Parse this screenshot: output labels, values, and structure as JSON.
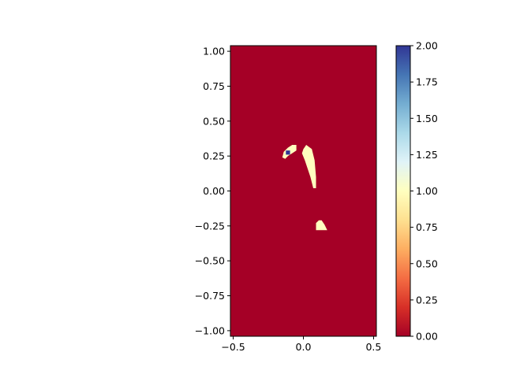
{
  "chart_data": [
    {
      "type": "heatmap",
      "title": "",
      "xlabel": "",
      "ylabel": "",
      "xlim": [
        -0.52,
        0.52
      ],
      "ylim": [
        -1.04,
        1.04
      ],
      "x_ticks": [
        -0.5,
        0.0,
        0.5
      ],
      "x_tick_labels": [
        "−0.5",
        "0.0",
        "0.5"
      ],
      "y_ticks": [
        1.0,
        0.75,
        0.5,
        0.25,
        0.0,
        -0.25,
        -0.5,
        -0.75,
        -1.0
      ],
      "y_tick_labels": [
        "1.00",
        "0.75",
        "0.50",
        "0.25",
        "0.00",
        "−0.25",
        "−0.50",
        "−0.75",
        "−1.00"
      ],
      "background_value": 0,
      "regions": [
        {
          "value": 1,
          "polygon": [
            [
              -0.15,
              0.24
            ],
            [
              -0.14,
              0.28
            ],
            [
              -0.11,
              0.31
            ],
            [
              -0.08,
              0.33
            ],
            [
              -0.05,
              0.33
            ],
            [
              -0.05,
              0.29
            ],
            [
              -0.08,
              0.27
            ],
            [
              -0.11,
              0.25
            ],
            [
              -0.13,
              0.23
            ]
          ]
        },
        {
          "value": 2,
          "polygon": [
            [
              -0.125,
              0.26
            ],
            [
              -0.125,
              0.29
            ],
            [
              -0.095,
              0.29
            ],
            [
              -0.095,
              0.26
            ]
          ]
        },
        {
          "value": 1,
          "polygon": [
            [
              0.0,
              0.3
            ],
            [
              0.02,
              0.33
            ],
            [
              0.06,
              0.3
            ],
            [
              0.08,
              0.22
            ],
            [
              0.09,
              0.1
            ],
            [
              0.09,
              0.02
            ],
            [
              0.07,
              0.02
            ],
            [
              0.05,
              0.1
            ],
            [
              0.01,
              0.22
            ],
            [
              -0.01,
              0.27
            ]
          ]
        },
        {
          "value": 1,
          "polygon": [
            [
              0.09,
              -0.28
            ],
            [
              0.09,
              -0.23
            ],
            [
              0.11,
              -0.21
            ],
            [
              0.13,
              -0.21
            ],
            [
              0.15,
              -0.24
            ],
            [
              0.17,
              -0.28
            ]
          ]
        }
      ]
    },
    {
      "type": "colorbar",
      "colormap": "RdYlBu",
      "range": [
        0,
        2
      ],
      "ticks": [
        0.0,
        0.25,
        0.5,
        0.75,
        1.0,
        1.25,
        1.5,
        1.75,
        2.0
      ],
      "tick_labels": [
        "0.00",
        "0.25",
        "0.50",
        "0.75",
        "1.00",
        "1.25",
        "1.50",
        "1.75",
        "2.00"
      ],
      "color_stops": [
        "#a50026",
        "#d73027",
        "#f46d43",
        "#fdae61",
        "#fee090",
        "#ffffbf",
        "#e0f3f8",
        "#abd9e9",
        "#74add1",
        "#4575b4",
        "#313695"
      ]
    }
  ]
}
